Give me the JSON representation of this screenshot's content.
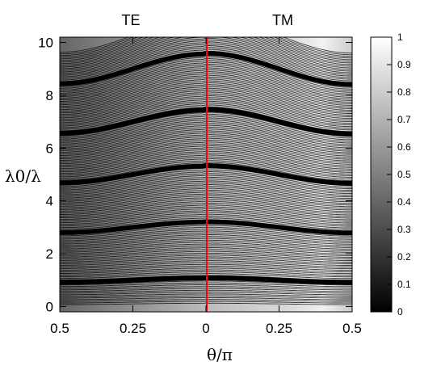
{
  "chart_data": {
    "type": "heatmap",
    "panel_labels": [
      "TE",
      "TM"
    ],
    "xlabel": "θ/π",
    "ylabel": "λ0/λ",
    "x_ticks": [
      {
        "value": -0.5,
        "label": "0.5"
      },
      {
        "value": -0.25,
        "label": "0.25"
      },
      {
        "value": 0,
        "label": "0"
      },
      {
        "value": 0.25,
        "label": "0.25"
      },
      {
        "value": 0.5,
        "label": "0.5"
      }
    ],
    "xlim": [
      -0.5,
      0.5
    ],
    "y_ticks": [
      0,
      2,
      4,
      6,
      8,
      10
    ],
    "ylim": [
      -0.2,
      10.2
    ],
    "colorbar": {
      "ticks": [
        "0",
        "0.1",
        "0.2",
        "0.3",
        "0.4",
        "0.5",
        "0.6",
        "0.7",
        "0.8",
        "0.9",
        "1"
      ],
      "range": [
        0,
        1
      ],
      "colormap": [
        "#000000",
        "#ffffff"
      ]
    },
    "divider": {
      "x": 0,
      "color": "#ff0000"
    },
    "dark_bands_at_normal_incidence": [
      1,
      3,
      5,
      7,
      9
    ]
  }
}
